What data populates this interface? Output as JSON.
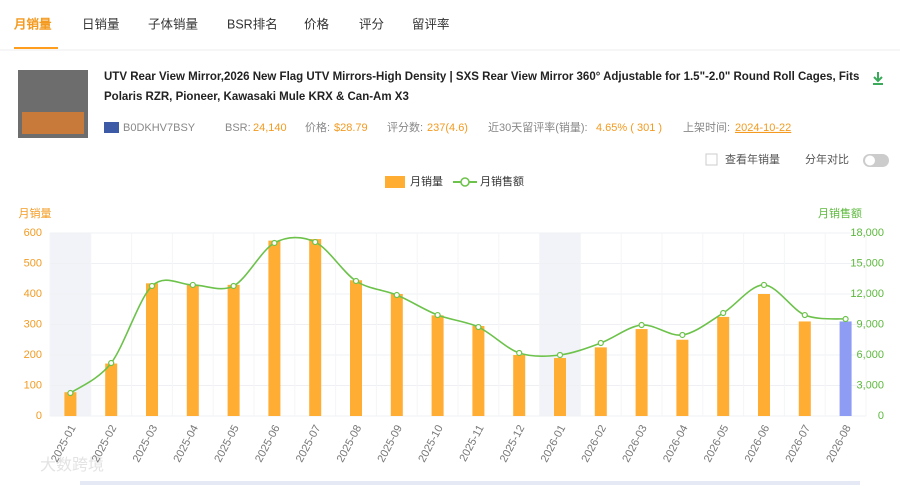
{
  "tabs": [
    "月销量",
    "日销量",
    "子体销量",
    "BSR排名",
    "价格",
    "评分",
    "留评率"
  ],
  "product": {
    "title_lines": [
      "UTV Rear View Mirror,2026 New Flag UTV Mirrors-High Density | SXS Rear View Mirror 360° Adjustable for 1.5\"-2.0\" Round Roll Cages, Fits",
      "Polaris RZR, Pioneer, Kawasaki Mule KRX & Can-Am X3"
    ],
    "asin": "B0DKHV7BSY",
    "bsr_label": "BSR:",
    "bsr": "24,140",
    "price_label": "价格:",
    "price": "$28.79",
    "reviews_label": "评分数:",
    "reviews": "237(4.6)",
    "review_rate_label": "近30天留评率(销量):",
    "review_rate": "4.65% ( 301 )",
    "listed_label": "上架时间:",
    "listed": "2024-10-22"
  },
  "controls": {
    "yearly": "查看年销量",
    "compare": "分年对比"
  },
  "watermark": "大数跨境",
  "chart_data": {
    "type": "bar-line",
    "categories": [
      "2025-01",
      "2025-02",
      "2025-03",
      "2025-04",
      "2025-05",
      "2025-06",
      "2025-07",
      "2025-08",
      "2025-09",
      "2025-10",
      "2025-11",
      "2025-12",
      "2026-01",
      "2026-02",
      "2026-03",
      "2026-04",
      "2026-05",
      "2026-06",
      "2026-07",
      "2026-08"
    ],
    "y_label": "月销量",
    "y2_label": "月销售额",
    "series": [
      {
        "name": "月销量",
        "type": "bar",
        "color": "#ffad33",
        "colors": [
          "#ffad33",
          "#ffad33",
          "#ffad33",
          "#ffad33",
          "#ffad33",
          "#ffad33",
          "#ffad33",
          "#ffad33",
          "#ffad33",
          "#ffad33",
          "#ffad33",
          "#ffad33",
          "#ffad33",
          "#ffad33",
          "#ffad33",
          "#ffad33",
          "#ffad33",
          "#ffad33",
          "#ffad33",
          "#8f9cf3"
        ],
        "values": [
          78,
          172,
          435,
          430,
          430,
          575,
          580,
          445,
          400,
          330,
          295,
          200,
          190,
          225,
          285,
          250,
          325,
          400,
          310,
          310
        ]
      },
      {
        "name": "月销售额",
        "type": "line",
        "axis": "y2",
        "color": "#6cc24a",
        "values": [
          2260,
          5210,
          12790,
          12890,
          12790,
          17020,
          17110,
          13280,
          11900,
          9930,
          8750,
          6200,
          6000,
          7180,
          8950,
          7970,
          10130,
          12890,
          9930,
          9540
        ]
      }
    ],
    "ylim": [
      0,
      600
    ],
    "yticks": [
      0,
      100,
      200,
      300,
      400,
      500,
      600
    ],
    "y2lim": [
      0,
      18000
    ],
    "y2ticks": [
      0,
      {
        "value": 3000,
        "label": "3,000"
      },
      {
        "value": 6000,
        "label": "6,000"
      },
      {
        "value": 9000,
        "label": "9,000"
      },
      {
        "value": 12000,
        "label": "12,000"
      },
      {
        "value": 15000,
        "label": "15,000"
      },
      {
        "value": 18000,
        "label": "18,000"
      }
    ],
    "grid": true
  }
}
